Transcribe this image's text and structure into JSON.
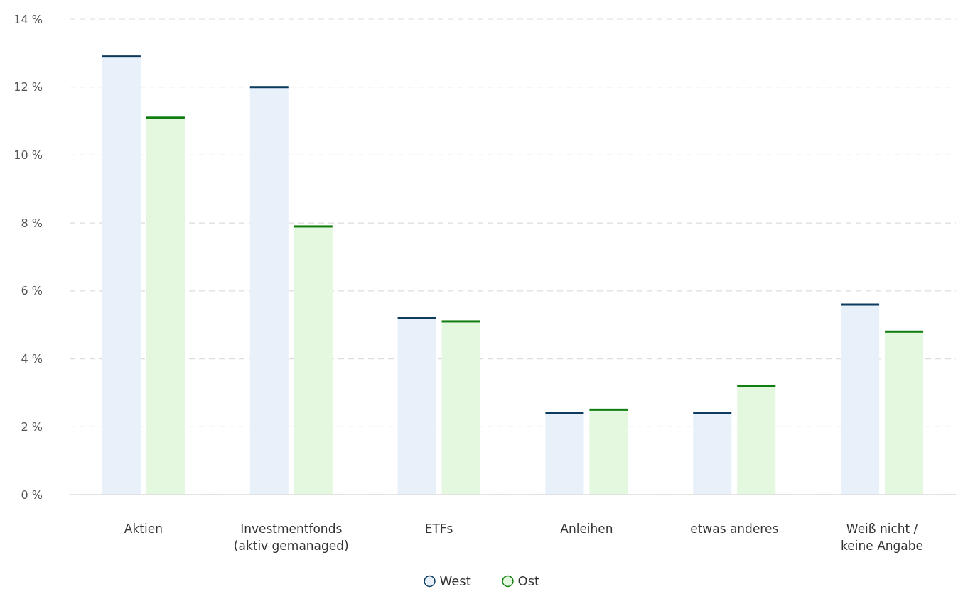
{
  "chart_data": {
    "type": "bar",
    "categories": [
      "Aktien",
      "Investmentfonds (aktiv gemanaged)",
      "ETFs",
      "Anleihen",
      "etwas anderes",
      "Weiß nicht / keine Angabe"
    ],
    "series": [
      {
        "name": "West",
        "color": "#e8f0fa",
        "values": [
          12.9,
          12.0,
          5.2,
          2.4,
          2.4,
          5.6
        ]
      },
      {
        "name": "Ost",
        "color": "#e4f7df",
        "values": [
          11.1,
          7.9,
          5.1,
          2.5,
          3.2,
          4.8
        ]
      }
    ],
    "ylim": [
      0,
      14
    ],
    "yticks": [
      {
        "value": 0,
        "label": "0 %"
      },
      {
        "value": 2,
        "label": "2 %"
      },
      {
        "value": 4,
        "label": "4 %"
      },
      {
        "value": 6,
        "label": "6 %"
      },
      {
        "value": 8,
        "label": "8 %"
      },
      {
        "value": 10,
        "label": "10 %"
      },
      {
        "value": 12,
        "label": "12 %"
      },
      {
        "value": 14,
        "label": "14 %"
      }
    ],
    "grid": "y",
    "legend": "bottom"
  }
}
